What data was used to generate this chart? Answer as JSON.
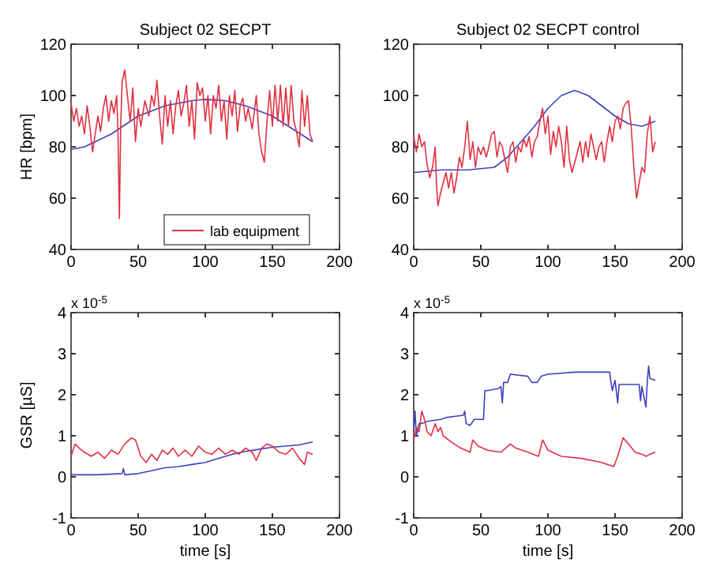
{
  "chart_data": [
    {
      "type": "line",
      "title": "Subject 02 SECPT",
      "ylabel": "HR [bpm]",
      "xlim": [
        0,
        200
      ],
      "xticks": [
        0,
        50,
        100,
        150,
        200
      ],
      "ylim": [
        40,
        120
      ],
      "yticks": [
        40,
        60,
        80,
        100,
        120
      ],
      "legend": "bottom",
      "series": [
        {
          "color": "#4040c0",
          "x": [
            0,
            10,
            30,
            50,
            70,
            90,
            100,
            115,
            130,
            150,
            165,
            180
          ],
          "values": [
            79,
            80,
            85,
            92,
            96,
            98,
            98.5,
            98,
            96,
            92,
            87,
            82
          ]
        },
        {
          "name": "lab equipment",
          "color": "#e03040",
          "x": [
            0,
            2,
            4,
            6,
            8,
            10,
            12,
            14,
            16,
            18,
            20,
            22,
            24,
            26,
            28,
            30,
            32,
            34,
            35,
            36,
            37,
            38,
            40,
            42,
            44,
            46,
            48,
            50,
            52,
            55,
            58,
            60,
            62,
            64,
            66,
            68,
            70,
            72,
            74,
            76,
            78,
            80,
            82,
            84,
            86,
            88,
            90,
            92,
            94,
            96,
            98,
            100,
            102,
            104,
            106,
            108,
            110,
            112,
            114,
            116,
            118,
            120,
            122,
            124,
            126,
            128,
            130,
            132,
            135,
            138,
            140,
            142,
            144,
            146,
            148,
            150,
            152,
            154,
            156,
            158,
            160,
            162,
            164,
            166,
            168,
            170,
            172,
            174,
            176,
            178,
            180
          ],
          "values": [
            97,
            90,
            95,
            88,
            92,
            85,
            96,
            88,
            78,
            85,
            92,
            86,
            95,
            100,
            90,
            98,
            93,
            100,
            85,
            52,
            88,
            105,
            110,
            100,
            90,
            103,
            82,
            95,
            88,
            98,
            92,
            100,
            96,
            106,
            92,
            81,
            100,
            88,
            98,
            85,
            96,
            102,
            92,
            97,
            104,
            88,
            98,
            83,
            105,
            100,
            103,
            90,
            100,
            85,
            100,
            95,
            104,
            90,
            98,
            83,
            100,
            92,
            102,
            86,
            96,
            99,
            90,
            95,
            87,
            100,
            85,
            78,
            74,
            90,
            102,
            88,
            104,
            90,
            104,
            88,
            103,
            88,
            104,
            90,
            86,
            80,
            102,
            88,
            100,
            85,
            82
          ]
        }
      ]
    },
    {
      "type": "line",
      "title": "Subject 02 SECPT control",
      "xlim": [
        0,
        200
      ],
      "xticks": [
        0,
        50,
        100,
        150,
        200
      ],
      "ylim": [
        40,
        120
      ],
      "yticks": [
        40,
        60,
        80,
        100,
        120
      ],
      "series": [
        {
          "color": "#4040c0",
          "x": [
            0,
            20,
            40,
            60,
            70,
            80,
            90,
            100,
            110,
            120,
            130,
            140,
            150,
            160,
            170,
            180
          ],
          "values": [
            70,
            71,
            71,
            72,
            76,
            82,
            88,
            95,
            100,
            102,
            100,
            96,
            92,
            89,
            88,
            90
          ]
        },
        {
          "color": "#e03040",
          "x": [
            0,
            2,
            4,
            6,
            8,
            10,
            12,
            14,
            16,
            17,
            18,
            20,
            22,
            24,
            26,
            28,
            30,
            32,
            34,
            36,
            38,
            40,
            42,
            44,
            46,
            48,
            50,
            52,
            54,
            56,
            58,
            60,
            62,
            64,
            66,
            68,
            70,
            72,
            74,
            76,
            78,
            80,
            82,
            84,
            86,
            88,
            90,
            92,
            94,
            96,
            98,
            100,
            102,
            104,
            106,
            108,
            110,
            112,
            114,
            116,
            118,
            120,
            122,
            124,
            126,
            128,
            130,
            132,
            134,
            136,
            138,
            140,
            142,
            144,
            146,
            148,
            150,
            152,
            154,
            156,
            158,
            160,
            162,
            164,
            166,
            168,
            170,
            172,
            174,
            176,
            178,
            180
          ],
          "values": [
            84,
            78,
            85,
            80,
            82,
            73,
            68,
            72,
            80,
            65,
            57,
            62,
            66,
            70,
            64,
            70,
            62,
            68,
            76,
            72,
            80,
            90,
            75,
            82,
            72,
            80,
            77,
            80,
            76,
            80,
            85,
            86,
            76,
            82,
            80,
            75,
            70,
            80,
            82,
            74,
            80,
            78,
            83,
            80,
            84,
            76,
            82,
            84,
            90,
            95,
            85,
            92,
            77,
            86,
            80,
            88,
            82,
            72,
            88,
            75,
            70,
            74,
            78,
            82,
            74,
            82,
            76,
            85,
            80,
            75,
            80,
            82,
            74,
            82,
            88,
            82,
            90,
            92,
            87,
            95,
            97,
            98,
            88,
            72,
            60,
            66,
            72,
            70,
            85,
            92,
            78,
            82
          ]
        }
      ]
    },
    {
      "type": "line",
      "ylabel": "GSR [µS]",
      "xlabel": "time [s]",
      "annotations": [
        "x 10$^{-5}$"
      ],
      "xlim": [
        0,
        200
      ],
      "xticks": [
        0,
        50,
        100,
        150,
        200
      ],
      "ylim": [
        -1,
        4
      ],
      "yticks": [
        -1,
        0,
        1,
        2,
        3,
        4
      ],
      "series": [
        {
          "color": "#4040c0",
          "x": [
            0,
            20,
            38,
            39,
            40,
            50,
            60,
            70,
            80,
            90,
            100,
            110,
            120,
            130,
            140,
            150,
            160,
            170,
            180
          ],
          "values": [
            0.05,
            0.05,
            0.08,
            0.2,
            0.05,
            0.08,
            0.15,
            0.22,
            0.25,
            0.3,
            0.35,
            0.45,
            0.55,
            0.62,
            0.67,
            0.72,
            0.75,
            0.78,
            0.85
          ]
        },
        {
          "color": "#e03040",
          "x": [
            0,
            3,
            6,
            10,
            15,
            20,
            25,
            30,
            35,
            40,
            45,
            48,
            52,
            56,
            60,
            64,
            68,
            72,
            76,
            80,
            85,
            90,
            95,
            100,
            105,
            110,
            115,
            120,
            125,
            130,
            135,
            138,
            142,
            146,
            150,
            155,
            160,
            165,
            170,
            174,
            176,
            180
          ],
          "values": [
            0.5,
            0.8,
            0.7,
            0.6,
            0.5,
            0.6,
            0.45,
            0.65,
            0.55,
            0.8,
            0.95,
            0.9,
            0.5,
            0.35,
            0.55,
            0.4,
            0.65,
            0.55,
            0.7,
            0.5,
            0.65,
            0.5,
            0.75,
            0.6,
            0.55,
            0.7,
            0.55,
            0.65,
            0.55,
            0.7,
            0.6,
            0.4,
            0.7,
            0.8,
            0.75,
            0.6,
            0.55,
            0.7,
            0.45,
            0.3,
            0.6,
            0.55
          ]
        }
      ]
    },
    {
      "type": "line",
      "xlabel": "time [s]",
      "annotations": [
        "x 10$^{-5}$"
      ],
      "xlim": [
        0,
        200
      ],
      "xticks": [
        0,
        50,
        100,
        150,
        200
      ],
      "ylim": [
        -1,
        4
      ],
      "yticks": [
        -1,
        0,
        1,
        2,
        3,
        4
      ],
      "series": [
        {
          "color": "#4040c0",
          "x": [
            0,
            1,
            2,
            4,
            6,
            10,
            20,
            25,
            30,
            37,
            38,
            39,
            42,
            45,
            52,
            53,
            55,
            63,
            65,
            66,
            67,
            70,
            72,
            85,
            88,
            92,
            95,
            100,
            120,
            146,
            147,
            148,
            150,
            152,
            153,
            160,
            168,
            169,
            170,
            173,
            174,
            175,
            176,
            180
          ],
          "values": [
            1.1,
            1.6,
            1.0,
            1.3,
            1.3,
            1.35,
            1.4,
            1.45,
            1.47,
            1.5,
            1.6,
            1.3,
            1.25,
            1.4,
            1.4,
            2.1,
            2.1,
            2.15,
            2.2,
            1.8,
            2.3,
            2.3,
            2.5,
            2.45,
            2.3,
            2.3,
            2.45,
            2.5,
            2.55,
            2.55,
            2.3,
            2.1,
            2.35,
            1.8,
            2.25,
            2.25,
            2.25,
            1.85,
            2.2,
            1.7,
            2.3,
            2.7,
            2.4,
            2.35
          ]
        },
        {
          "color": "#e03040",
          "x": [
            0,
            2,
            4,
            6,
            8,
            10,
            13,
            16,
            18,
            20,
            22,
            28,
            35,
            42,
            44,
            48,
            55,
            65,
            72,
            76,
            85,
            93,
            96,
            100,
            110,
            125,
            140,
            149,
            152,
            156,
            160,
            165,
            170,
            173,
            176,
            180
          ],
          "values": [
            0.9,
            1.2,
            1.1,
            1.6,
            1.4,
            1.1,
            1.0,
            1.3,
            1.1,
            1.2,
            1.0,
            0.85,
            0.7,
            0.6,
            0.9,
            0.75,
            0.65,
            0.6,
            0.8,
            0.7,
            0.6,
            0.5,
            0.9,
            0.65,
            0.5,
            0.45,
            0.35,
            0.25,
            0.5,
            0.95,
            0.8,
            0.6,
            0.55,
            0.5,
            0.55,
            0.6
          ]
        }
      ]
    }
  ]
}
